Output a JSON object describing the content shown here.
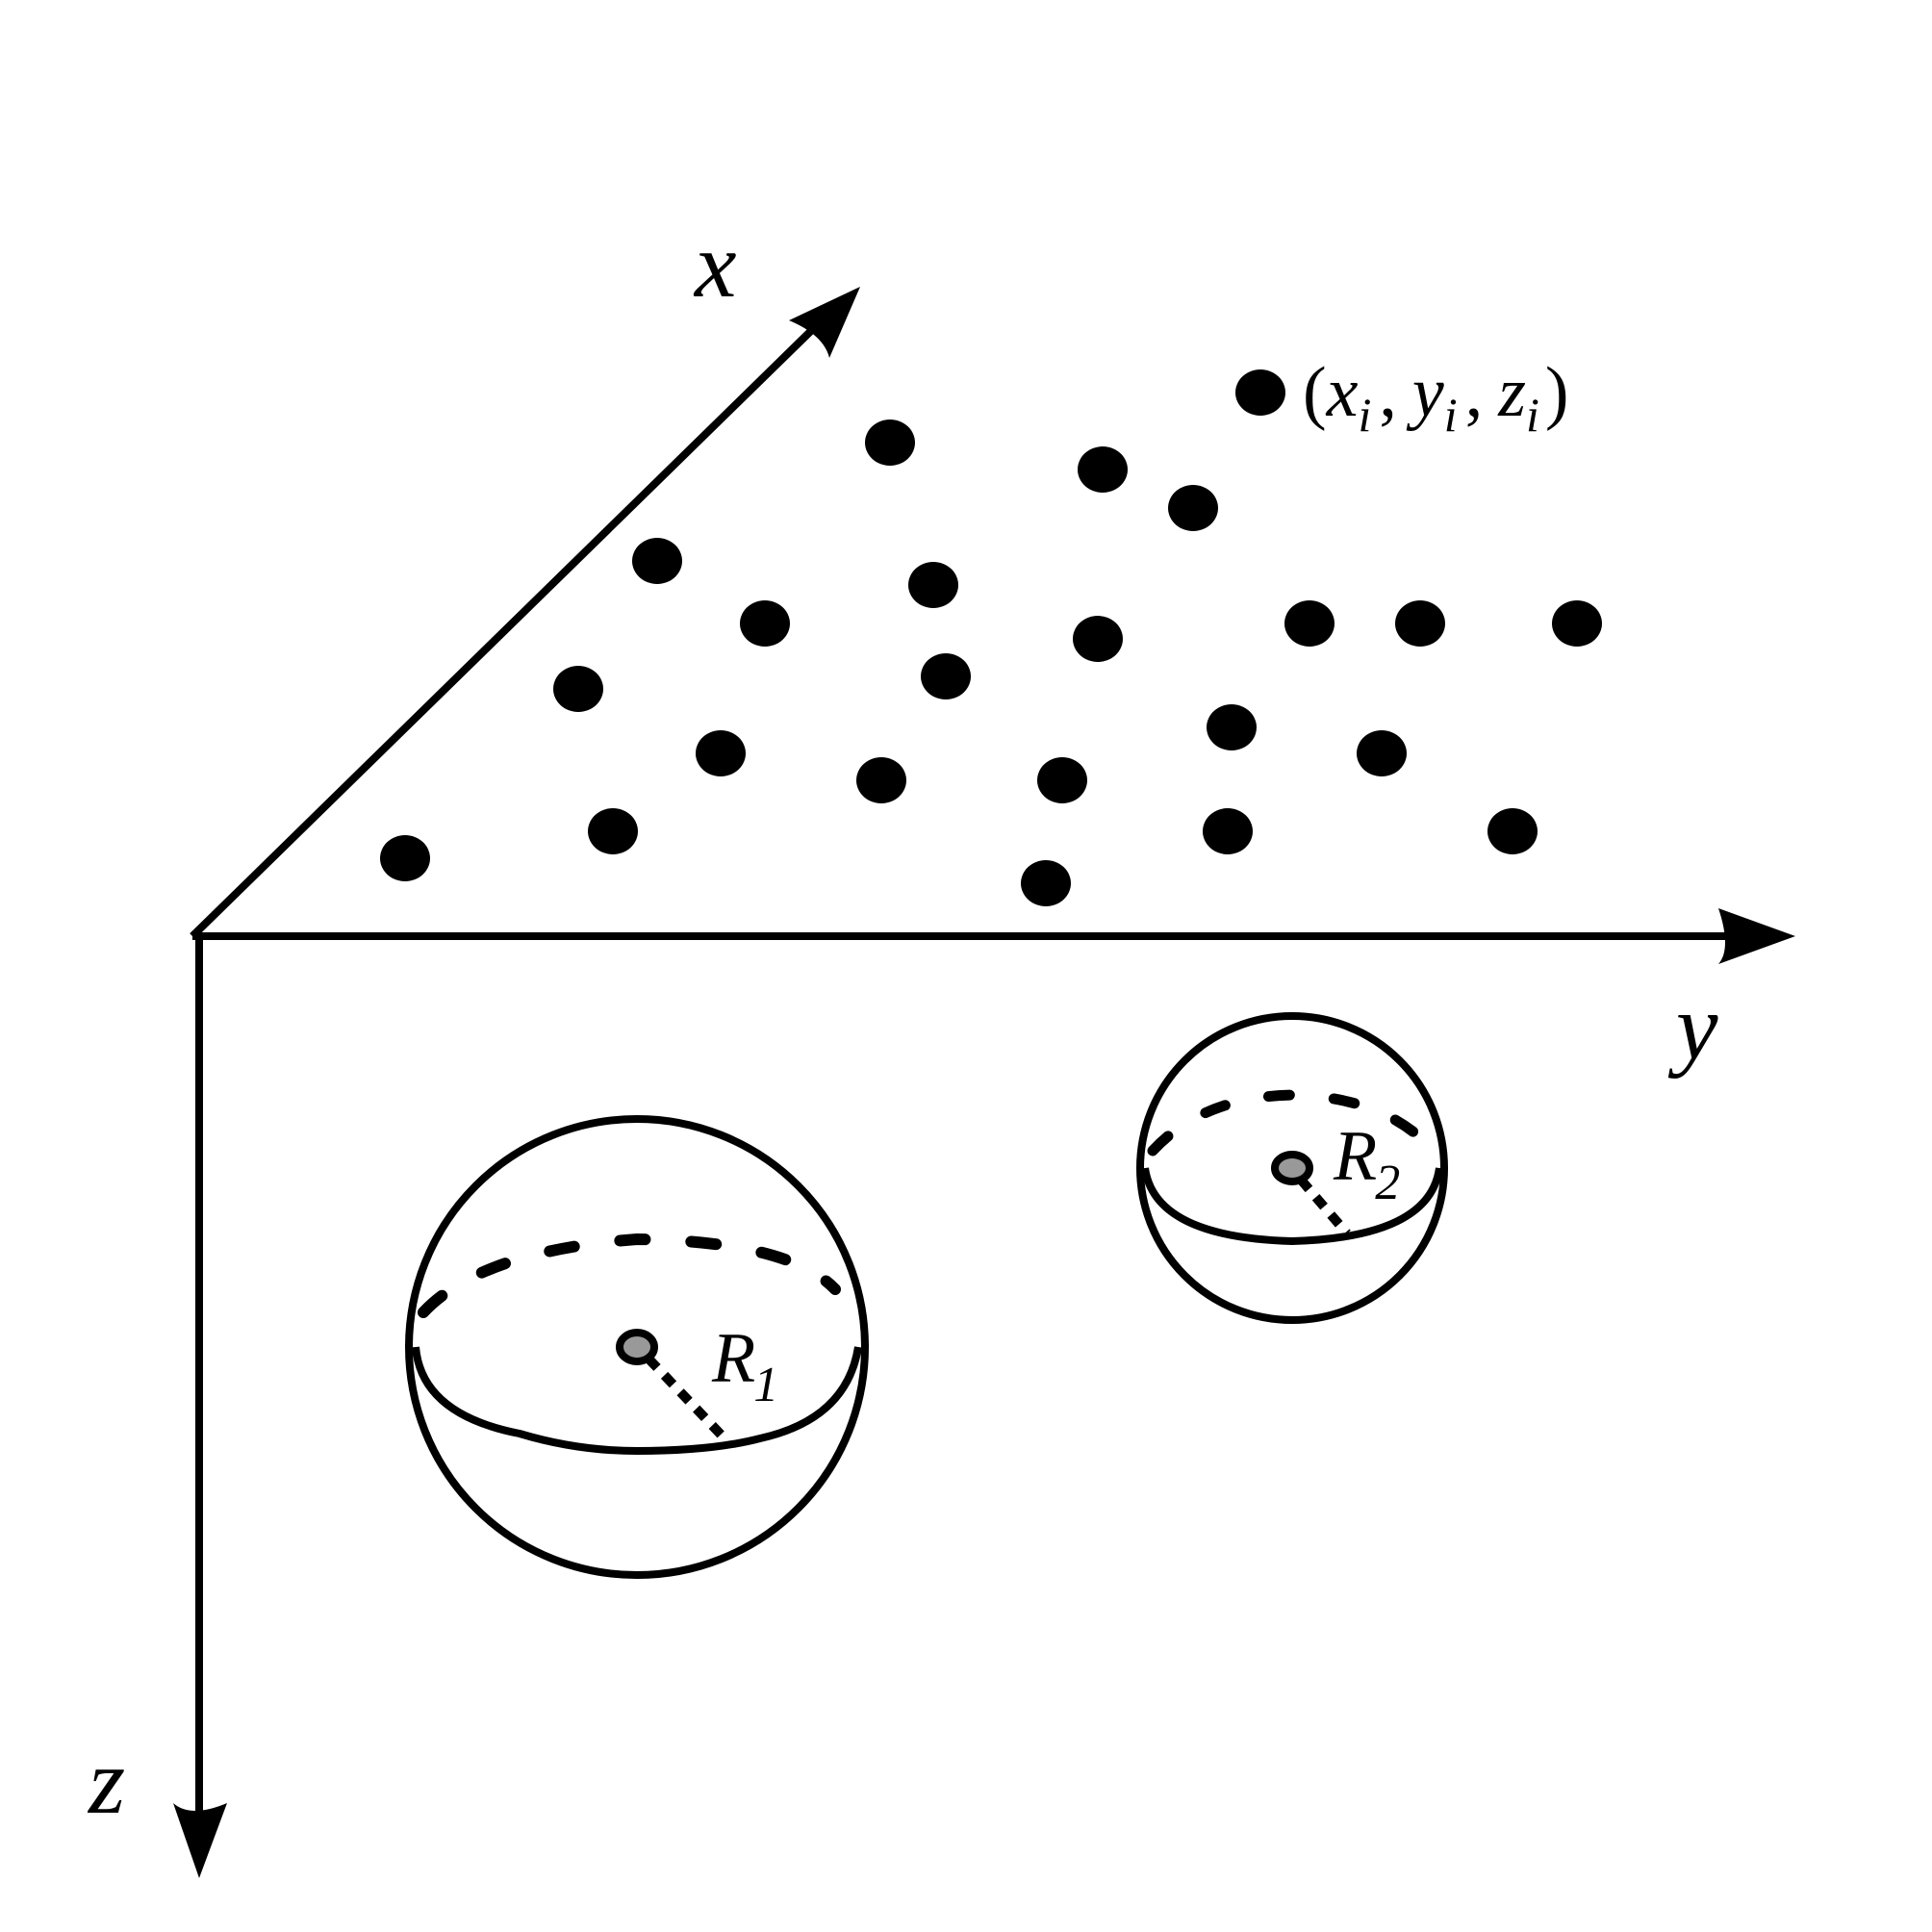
{
  "axes": {
    "x_label": "x",
    "y_label": "y",
    "z_label": "z"
  },
  "point_label": {
    "open_paren": "(",
    "x": "x",
    "x_sub": "i",
    "sep1": ",",
    "y": "y",
    "y_sub": "i",
    "sep2": ",",
    "z": "z",
    "z_sub": "i",
    "close_paren": ")"
  },
  "spheres": [
    {
      "label": "R",
      "subscript": "1"
    },
    {
      "label": "R",
      "subscript": "2"
    }
  ],
  "colors": {
    "stroke": "#000000",
    "point_fill": "#000000",
    "center_fill": "#999999"
  }
}
